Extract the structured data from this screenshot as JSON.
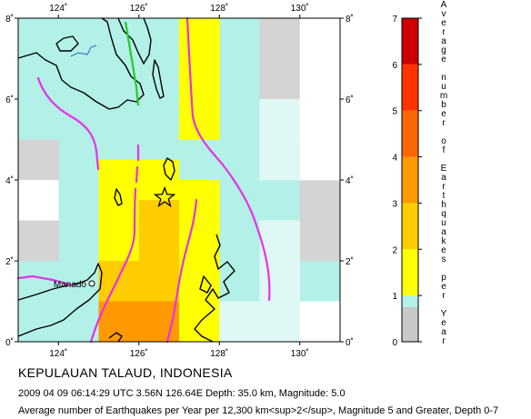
{
  "title": "KEPULAUAN TALAUD, INDONESIA",
  "event_line": "2009 04 09 06:14:29 UTC 3.56N 126.64E Depth: 35.0 km, Magnitude: 5.0",
  "footnote": "Average number of Earthquakes per Year per 12,300 km<sup>2</sup>, Magnitude 5 and Greater, Depth 0-7",
  "map": {
    "lon_range": [
      123,
      131
    ],
    "lat_range": [
      0,
      8
    ],
    "top_ticks": [
      "124˚",
      "126˚",
      "128˚",
      "130˚"
    ],
    "bottom_ticks": [
      "124˚",
      "126˚",
      "128˚",
      "130˚"
    ],
    "left_ticks": [
      "8˚",
      "6˚",
      "4˚",
      "2˚",
      "0˚"
    ],
    "right_ticks": [
      "8˚",
      "6˚",
      "4˚",
      "2˚",
      "0˚"
    ],
    "city_label": "Manado",
    "epicenter_symbol": "star",
    "colors": {
      "land": "#ffffff",
      "coastline": "#000000",
      "plate_boundary": "#e633e6",
      "fault_line": "#22cc22",
      "river": "#3366cc"
    }
  },
  "legend": {
    "title_text": "Average number of Earthquakes per Year",
    "ticks": [
      "0",
      "1",
      "2",
      "3",
      "4",
      "5",
      "6",
      "7"
    ],
    "colors": [
      {
        "from": 0,
        "to": 1,
        "color": "#b3f0e8"
      },
      {
        "from": 1,
        "to": 2,
        "color": "#ffff00"
      },
      {
        "from": 2,
        "to": 3,
        "color": "#ffcc00"
      },
      {
        "from": 3,
        "to": 4,
        "color": "#ff9900"
      },
      {
        "from": 4,
        "to": 5,
        "color": "#ff6600"
      },
      {
        "from": 5,
        "to": 6,
        "color": "#ff3300"
      },
      {
        "from": 6,
        "to": 7,
        "color": "#cc0000"
      }
    ]
  }
}
